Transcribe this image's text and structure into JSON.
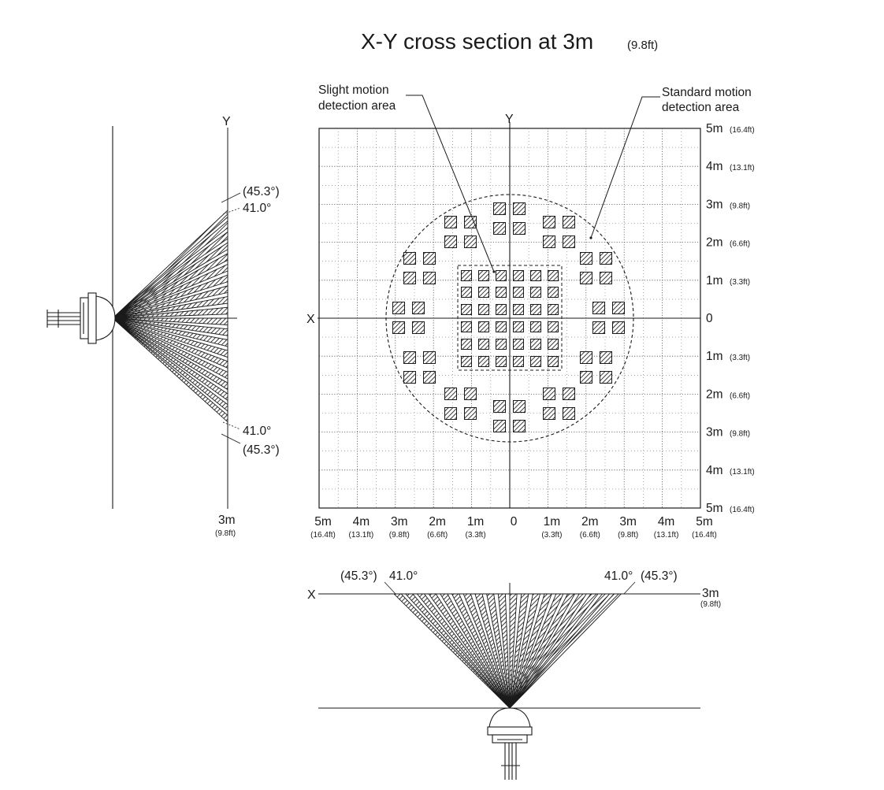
{
  "title": {
    "main": "X-Y cross section at 3m",
    "sub": "(9.8ft)"
  },
  "axes": {
    "x": "X",
    "y": "Y",
    "origin": "0"
  },
  "callouts": {
    "slight": [
      "Slight motion",
      "detection area"
    ],
    "standard": [
      "Standard motion",
      "detection area"
    ]
  },
  "right_ticks": [
    {
      "m": "5m",
      "ft": "(16.4ft)"
    },
    {
      "m": "4m",
      "ft": "(13.1ft)"
    },
    {
      "m": "3m",
      "ft": "(9.8ft)"
    },
    {
      "m": "2m",
      "ft": "(6.6ft)"
    },
    {
      "m": "1m",
      "ft": "(3.3ft)"
    },
    {
      "m": "0",
      "ft": ""
    },
    {
      "m": "1m",
      "ft": "(3.3ft)"
    },
    {
      "m": "2m",
      "ft": "(6.6ft)"
    },
    {
      "m": "3m",
      "ft": "(9.8ft)"
    },
    {
      "m": "4m",
      "ft": "(13.1ft)"
    },
    {
      "m": "5m",
      "ft": "(16.4ft)"
    }
  ],
  "bottom_ticks": [
    {
      "m": "5m",
      "ft": "(16.4ft)"
    },
    {
      "m": "4m",
      "ft": "(13.1ft)"
    },
    {
      "m": "3m",
      "ft": "(9.8ft)"
    },
    {
      "m": "2m",
      "ft": "(6.6ft)"
    },
    {
      "m": "1m",
      "ft": "(3.3ft)"
    },
    {
      "m": "0",
      "ft": ""
    },
    {
      "m": "1m",
      "ft": "(3.3ft)"
    },
    {
      "m": "2m",
      "ft": "(6.6ft)"
    },
    {
      "m": "3m",
      "ft": "(9.8ft)"
    },
    {
      "m": "4m",
      "ft": "(13.1ft)"
    },
    {
      "m": "5m",
      "ft": "(16.4ft)"
    }
  ],
  "side_view": {
    "angle_outer": "(45.3°)",
    "angle_inner": "41.0°",
    "distance": "3m",
    "distance_ft": "(9.8ft)"
  },
  "bottom_view": {
    "angle_outer": "(45.3°)",
    "angle_inner": "41.0°",
    "distance": "3m",
    "distance_ft": "(9.8ft)"
  },
  "colors": {
    "line": "#1a1a1a",
    "grid": "#555555",
    "hatch": "#222222"
  }
}
